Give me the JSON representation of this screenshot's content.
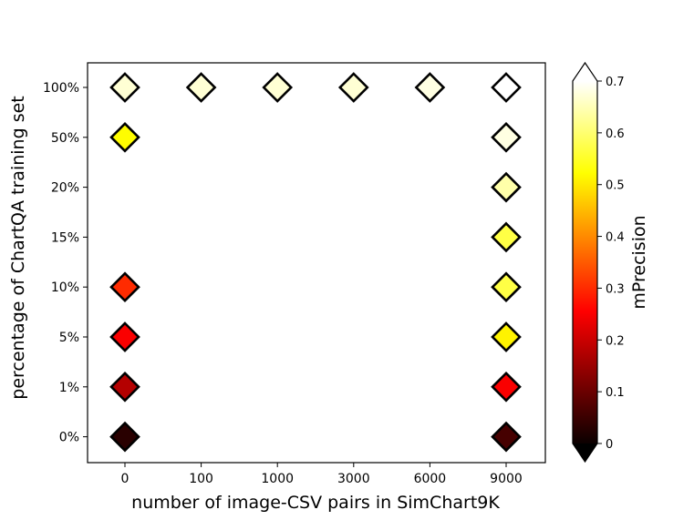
{
  "chart_data": {
    "type": "scatter",
    "marker": "diamond",
    "xlabel": "number of image-CSV pairs in SimChart9K",
    "ylabel": "percentage of ChartQA training set",
    "x_categories": [
      "0",
      "100",
      "1000",
      "3000",
      "6000",
      "9000"
    ],
    "y_categories": [
      "0%",
      "1%",
      "5%",
      "10%",
      "15%",
      "20%",
      "50%",
      "100%"
    ],
    "colorbar": {
      "label": "mPrecision",
      "colormap": "hot",
      "range": [
        0,
        0.7
      ],
      "ticks": [
        "0",
        "0.1",
        "0.2",
        "0.3",
        "0.4",
        "0.5",
        "0.6",
        "0.7"
      ],
      "extend": "both"
    },
    "points": [
      {
        "x": "0",
        "y": "100%",
        "value": 0.67
      },
      {
        "x": "100",
        "y": "100%",
        "value": 0.67
      },
      {
        "x": "1000",
        "y": "100%",
        "value": 0.67
      },
      {
        "x": "3000",
        "y": "100%",
        "value": 0.67
      },
      {
        "x": "6000",
        "y": "100%",
        "value": 0.68
      },
      {
        "x": "9000",
        "y": "100%",
        "value": 0.7
      },
      {
        "x": "0",
        "y": "50%",
        "value": 0.52
      },
      {
        "x": "9000",
        "y": "50%",
        "value": 0.68
      },
      {
        "x": "9000",
        "y": "20%",
        "value": 0.64
      },
      {
        "x": "9000",
        "y": "15%",
        "value": 0.57
      },
      {
        "x": "0",
        "y": "10%",
        "value": 0.3
      },
      {
        "x": "9000",
        "y": "10%",
        "value": 0.57
      },
      {
        "x": "0",
        "y": "5%",
        "value": 0.24
      },
      {
        "x": "9000",
        "y": "5%",
        "value": 0.51
      },
      {
        "x": "0",
        "y": "1%",
        "value": 0.17
      },
      {
        "x": "9000",
        "y": "1%",
        "value": 0.24
      },
      {
        "x": "0",
        "y": "0%",
        "value": 0.03
      },
      {
        "x": "9000",
        "y": "0%",
        "value": 0.06
      }
    ]
  }
}
